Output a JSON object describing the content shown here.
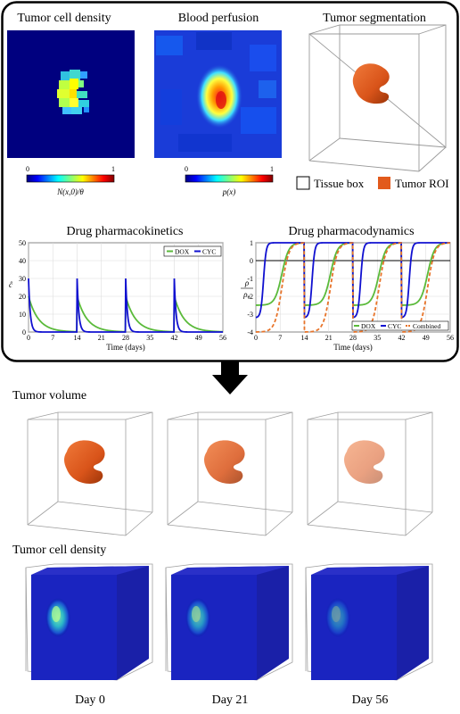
{
  "top_panel": {
    "density": {
      "title": "Tumor cell density",
      "cbar_min": "0",
      "cbar_max": "1",
      "cbar_label": "N(x,0)/θ"
    },
    "perfusion": {
      "title": "Blood perfusion",
      "cbar_min": "0",
      "cbar_max": "1",
      "cbar_label": "p(x)"
    },
    "segmentation": {
      "title": "Tumor segmentation",
      "legend_box": "Tissue box",
      "legend_roi": "Tumor ROI"
    },
    "colors": {
      "jet_low": "#00007f",
      "jet_high": "#7f0000",
      "tumor": "#d9541a",
      "dox": "#5aba3a",
      "cyc": "#1010d0",
      "combined": "#e8742a"
    }
  },
  "pk": {
    "title": "Drug pharmacokinetics",
    "ylabel": "ĉ",
    "xlabel": "Time (days)"
  },
  "pd": {
    "title": "Drug pharmacodynamics",
    "ylabel_num": "ρ",
    "ylabel_den": "ρ₀",
    "xlabel": "Time (days)"
  },
  "chart_data": [
    {
      "type": "line",
      "title": "Drug pharmacokinetics",
      "xlabel": "Time (days)",
      "ylabel": "ĉ",
      "xlim": [
        0,
        56
      ],
      "ylim": [
        0,
        50
      ],
      "xticks": [
        0,
        7,
        14,
        21,
        28,
        35,
        42,
        49,
        56
      ],
      "yticks": [
        0,
        10,
        20,
        30,
        40,
        50
      ],
      "doses_at": [
        0,
        14,
        28,
        42
      ],
      "grid": true,
      "legend": "top-right",
      "series": [
        {
          "name": "DOX",
          "peak": 20,
          "decay_rate": 0.35,
          "color": "#5aba3a"
        },
        {
          "name": "CYC",
          "peak": 30,
          "decay_rate": 2.0,
          "color": "#1010d0"
        }
      ]
    },
    {
      "type": "line",
      "title": "Drug pharmacodynamics",
      "xlabel": "Time (days)",
      "ylabel": "ρ/ρ₀",
      "xlim": [
        0,
        56
      ],
      "ylim": [
        -4,
        1
      ],
      "xticks": [
        0,
        7,
        14,
        21,
        28,
        35,
        42,
        49,
        56
      ],
      "yticks": [
        -4,
        -3,
        -2,
        -1,
        0,
        1
      ],
      "doses_at": [
        0,
        14,
        28,
        42
      ],
      "grid": true,
      "legend": "bottom",
      "series": [
        {
          "name": "DOX",
          "start": -2.5,
          "mid_day": 7.5,
          "steep": 1.0,
          "color": "#5aba3a"
        },
        {
          "name": "CYC",
          "start": -3.2,
          "mid_day": 2.2,
          "steep": 2.6,
          "color": "#1010d0"
        },
        {
          "name": "Combined",
          "start": -4.0,
          "mid_day": 7.5,
          "steep": 1.0,
          "color": "#e8742a"
        }
      ]
    }
  ],
  "bottom": {
    "row1_title": "Tumor volume",
    "row2_title": "Tumor cell density",
    "days": [
      "Day 0",
      "Day 21",
      "Day 56"
    ]
  }
}
